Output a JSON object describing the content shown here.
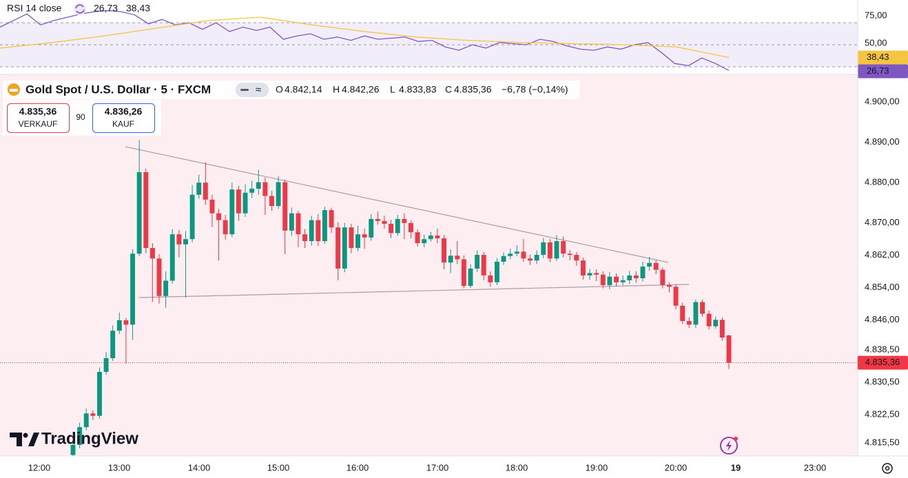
{
  "header": {
    "symbol": "Gold Spot / U.S. Dollar · 5 · FXCM",
    "ohlc": [
      {
        "key": "O",
        "value": "4.842,14"
      },
      {
        "key": "H",
        "value": "4.842,26"
      },
      {
        "key": "L",
        "value": "4.833,83"
      },
      {
        "key": "C",
        "value": "4.835,36"
      }
    ],
    "change": "−6,78 (−0,14%)"
  },
  "trade": {
    "sell_price": "4.835,36",
    "sell_label": "VERKAUF",
    "spread": "90",
    "buy_price": "4.836,26",
    "buy_label": "KAUF"
  },
  "branding": "TradingView",
  "chart_data": [
    {
      "type": "candlestick",
      "title": "Gold Spot / U.S. Dollar · 5 · FXCM",
      "time_labels": [
        "12:00",
        "13:00",
        "14:00",
        "15:00",
        "16:00",
        "17:00",
        "18:00",
        "19:00",
        "20:00",
        "19",
        "23:00"
      ],
      "up_color": "#089981",
      "down_color": "#f23645",
      "grid": false,
      "ylim": [
        4812.26,
        4906.83
      ],
      "yticks": [
        {
          "value": 4900,
          "label": "4.900,00"
        },
        {
          "value": 4890,
          "label": "4.890,00"
        },
        {
          "value": 4880,
          "label": "4.880,00"
        },
        {
          "value": 4870,
          "label": "4.870,00"
        },
        {
          "value": 4862,
          "label": "4.862,00"
        },
        {
          "value": 4854,
          "label": "4.854,00"
        },
        {
          "value": 4846,
          "label": "4.846,00"
        },
        {
          "value": 4838.5,
          "label": "4.838,50"
        },
        {
          "value": 4830.5,
          "label": "4.830,50"
        },
        {
          "value": 4822.5,
          "label": "4.822,50"
        },
        {
          "value": 4815.5,
          "label": "4.815,50"
        }
      ],
      "open": [
        4812.5,
        4815.0,
        4819.4,
        4822.8,
        4822.2,
        4833.1,
        4836.5,
        4843.3,
        4845.9,
        4844.8,
        4862.4,
        4882.6,
        4863.8,
        4861.2,
        4851.9,
        4855.7,
        4867.2,
        4864.7,
        4866.0,
        4877.0,
        4880.0,
        4875.8,
        4872.4,
        4870.7,
        4867.2,
        4878.3,
        4872.4,
        4877.5,
        4878.5,
        4880.1,
        4876.7,
        4874.2,
        4880.1,
        4868.1,
        4872.4,
        4867.2,
        4865.5,
        4870.7,
        4865.5,
        4873.2,
        4868.9,
        4858.7,
        4868.9,
        4863.8,
        4867.2,
        4866.4,
        4871.0,
        4870.5,
        4869.8,
        4867.5,
        4871.0,
        4870.0,
        4867.7,
        4865.0,
        4866.0,
        4866.9,
        4866.2,
        4860.2,
        4861.9,
        4861.0,
        4854.4,
        4858.7,
        4862.1,
        4857.0,
        4855.3,
        4860.4,
        4861.8,
        4862.4,
        4862.9,
        4861.2,
        4860.7,
        4862.1,
        4865.2,
        4861.2,
        4865.5,
        4862.4,
        4862.1,
        4860.7,
        4857.0,
        4857.6,
        4857.2,
        4854.6,
        4856.7,
        4855.3,
        4855.8,
        4857.0,
        4856.3,
        4859.2,
        4860.1,
        4858.4,
        4854.6,
        4854.2,
        4849.5,
        4845.7,
        4844.8,
        4850.4,
        4847.5,
        4844.4,
        4846.0,
        4842.14
      ],
      "high": [
        4816.0,
        4820.5,
        4824.0,
        4823.6,
        4834.2,
        4838.0,
        4844.6,
        4847.8,
        4846.5,
        4863.5,
        4890.6,
        4883.5,
        4865.0,
        4862.3,
        4858.0,
        4868.5,
        4868.3,
        4868.0,
        4879.4,
        4882.0,
        4885.1,
        4877.0,
        4873.5,
        4872.0,
        4880.0,
        4879.2,
        4879.6,
        4880.5,
        4883.2,
        4881.3,
        4878.0,
        4881.6,
        4880.8,
        4873.8,
        4873.0,
        4868.5,
        4871.8,
        4872.2,
        4874.0,
        4873.8,
        4870.2,
        4870.0,
        4869.8,
        4869.3,
        4868.6,
        4872.2,
        4872.8,
        4871.8,
        4870.8,
        4872.0,
        4872.4,
        4870.6,
        4868.4,
        4867.1,
        4867.8,
        4868.6,
        4867.0,
        4863.5,
        4865.5,
        4862.0,
        4859.8,
        4863.2,
        4862.8,
        4858.0,
        4861.3,
        4862.7,
        4863.6,
        4864.5,
        4866.0,
        4862.2,
        4863.2,
        4866.3,
        4866.0,
        4867.0,
        4866.6,
        4863.3,
        4862.8,
        4861.4,
        4858.6,
        4858.5,
        4858.0,
        4857.8,
        4857.5,
        4857.0,
        4858.1,
        4858.0,
        4860.4,
        4861.6,
        4860.8,
        4859.0,
        4855.3,
        4854.8,
        4850.2,
        4846.6,
        4851.0,
        4851.0,
        4848.3,
        4846.8,
        4846.6,
        4842.26
      ],
      "low": [
        4812.3,
        4814.2,
        4818.6,
        4821.2,
        4821.5,
        4832.4,
        4835.8,
        4842.5,
        4835.2,
        4841.0,
        4861.8,
        4862.5,
        4850.5,
        4850.0,
        4849.0,
        4855.0,
        4861.5,
        4851.5,
        4865.2,
        4876.0,
        4874.5,
        4869.0,
        4860.7,
        4865.8,
        4866.5,
        4870.5,
        4871.5,
        4876.2,
        4877.0,
        4872.0,
        4873.0,
        4873.5,
        4862.3,
        4866.8,
        4864.0,
        4863.8,
        4864.4,
        4864.3,
        4864.8,
        4867.5,
        4855.8,
        4857.8,
        4862.5,
        4863.0,
        4863.6,
        4865.6,
        4869.6,
        4868.6,
        4866.3,
        4866.8,
        4866.0,
        4866.2,
        4864.2,
        4864.0,
        4865.4,
        4865.0,
        4858.5,
        4857.6,
        4859.8,
        4853.8,
        4853.9,
        4857.9,
        4855.8,
        4854.2,
        4854.6,
        4859.6,
        4861.0,
        4861.8,
        4860.4,
        4859.6,
        4859.8,
        4861.3,
        4860.3,
        4860.6,
        4861.5,
        4860.8,
        4859.4,
        4856.0,
        4855.9,
        4855.6,
        4853.8,
        4853.6,
        4854.3,
        4854.6,
        4854.9,
        4855.2,
        4855.5,
        4858.2,
        4857.3,
        4853.8,
        4852.8,
        4848.6,
        4845.0,
        4844.0,
        4844.0,
        4846.8,
        4843.6,
        4843.8,
        4840.8,
        4833.83
      ],
      "close": [
        4815.0,
        4819.4,
        4822.8,
        4822.2,
        4833.1,
        4836.5,
        4843.3,
        4845.9,
        4844.8,
        4862.4,
        4882.6,
        4863.8,
        4861.2,
        4851.9,
        4855.7,
        4867.2,
        4864.7,
        4866.0,
        4877.0,
        4880.0,
        4875.8,
        4872.4,
        4870.7,
        4867.2,
        4878.3,
        4872.4,
        4877.5,
        4878.5,
        4880.1,
        4876.7,
        4874.2,
        4880.1,
        4868.1,
        4872.4,
        4867.2,
        4865.5,
        4870.7,
        4865.5,
        4873.2,
        4868.9,
        4858.7,
        4868.9,
        4863.8,
        4867.2,
        4866.4,
        4871.0,
        4870.5,
        4869.8,
        4867.5,
        4871.0,
        4870.0,
        4867.7,
        4865.0,
        4866.0,
        4866.9,
        4866.2,
        4860.2,
        4861.9,
        4861.0,
        4854.4,
        4858.7,
        4862.1,
        4857.0,
        4855.3,
        4860.4,
        4861.8,
        4862.4,
        4862.9,
        4861.2,
        4860.7,
        4862.1,
        4865.2,
        4861.2,
        4865.5,
        4862.4,
        4862.1,
        4860.7,
        4857.0,
        4857.6,
        4857.2,
        4854.6,
        4856.7,
        4855.3,
        4855.8,
        4857.0,
        4856.3,
        4859.2,
        4860.1,
        4858.4,
        4854.6,
        4854.2,
        4849.5,
        4845.7,
        4844.8,
        4850.4,
        4847.5,
        4844.4,
        4846.0,
        4841.6,
        4835.36
      ],
      "last_price_label": "4.835,36"
    },
    {
      "type": "line",
      "title": "RSI 14 close",
      "ylim": [
        24.4,
        90.6
      ],
      "yticks": [
        {
          "value": 75,
          "label": "75,00"
        },
        {
          "value": 50,
          "label": "50,00"
        }
      ],
      "levels": [
        70,
        50,
        30
      ],
      "band_color": "#ede7f6",
      "series": [
        {
          "color": "#7e57c2",
          "values": [
            66,
            72,
            78,
            68,
            72,
            75,
            78,
            80,
            81,
            80,
            77,
            69,
            73,
            68,
            70,
            64,
            70,
            62,
            66,
            63,
            66,
            55,
            58,
            60,
            55,
            57,
            54,
            58,
            55,
            56,
            57,
            53,
            54,
            48,
            45,
            50,
            47,
            52,
            51,
            50,
            55,
            53,
            49,
            46,
            45,
            48,
            46,
            50,
            52,
            43,
            33,
            31,
            38,
            33,
            26.73
          ],
          "value_label": "26,73"
        },
        {
          "color": "#f5c542",
          "values": [
            47,
            52,
            58,
            65,
            72,
            75,
            68,
            62,
            57,
            54,
            52,
            51,
            50,
            48,
            38.43
          ],
          "value_label": "38,43"
        }
      ]
    }
  ]
}
